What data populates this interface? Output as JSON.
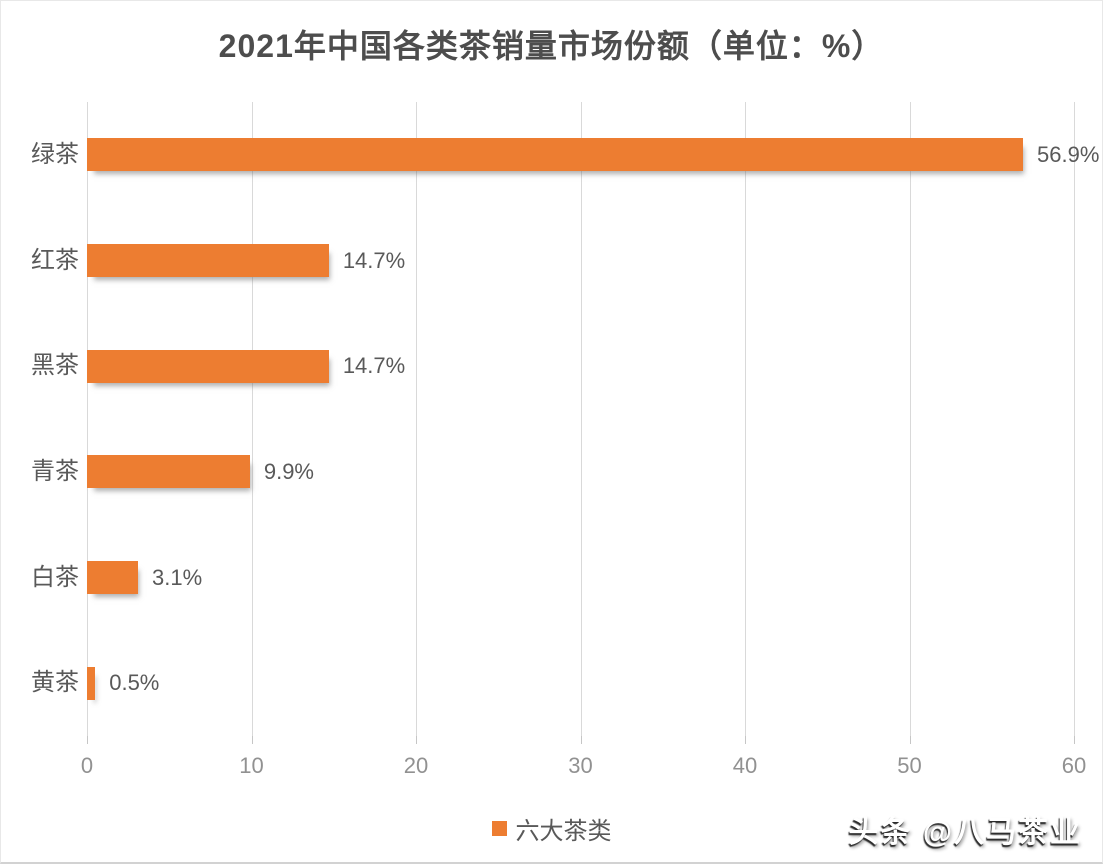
{
  "chart_data": {
    "type": "bar",
    "orientation": "horizontal",
    "title": "2021年中国各类茶销量市场份额（单位：%）",
    "categories": [
      "绿茶",
      "红茶",
      "黑茶",
      "青茶",
      "白茶",
      "黄茶"
    ],
    "values": [
      56.9,
      14.7,
      14.7,
      9.9,
      3.1,
      0.5
    ],
    "data_labels": [
      "56.9%",
      "14.7%",
      "14.7%",
      "9.9%",
      "3.1%",
      "0.5%"
    ],
    "x_ticks": [
      "0",
      "10",
      "20",
      "30",
      "40",
      "50",
      "60"
    ],
    "x_tick_values": [
      0,
      10,
      20,
      30,
      40,
      50,
      60
    ],
    "xlim": [
      0,
      60
    ],
    "grid": true,
    "bar_color": "#ED7D31",
    "gridline_color": "#d9d9d9",
    "legend": {
      "label": "六大茶类",
      "position": "bottom"
    }
  },
  "watermark": {
    "text": "头条 @八马茶业"
  }
}
